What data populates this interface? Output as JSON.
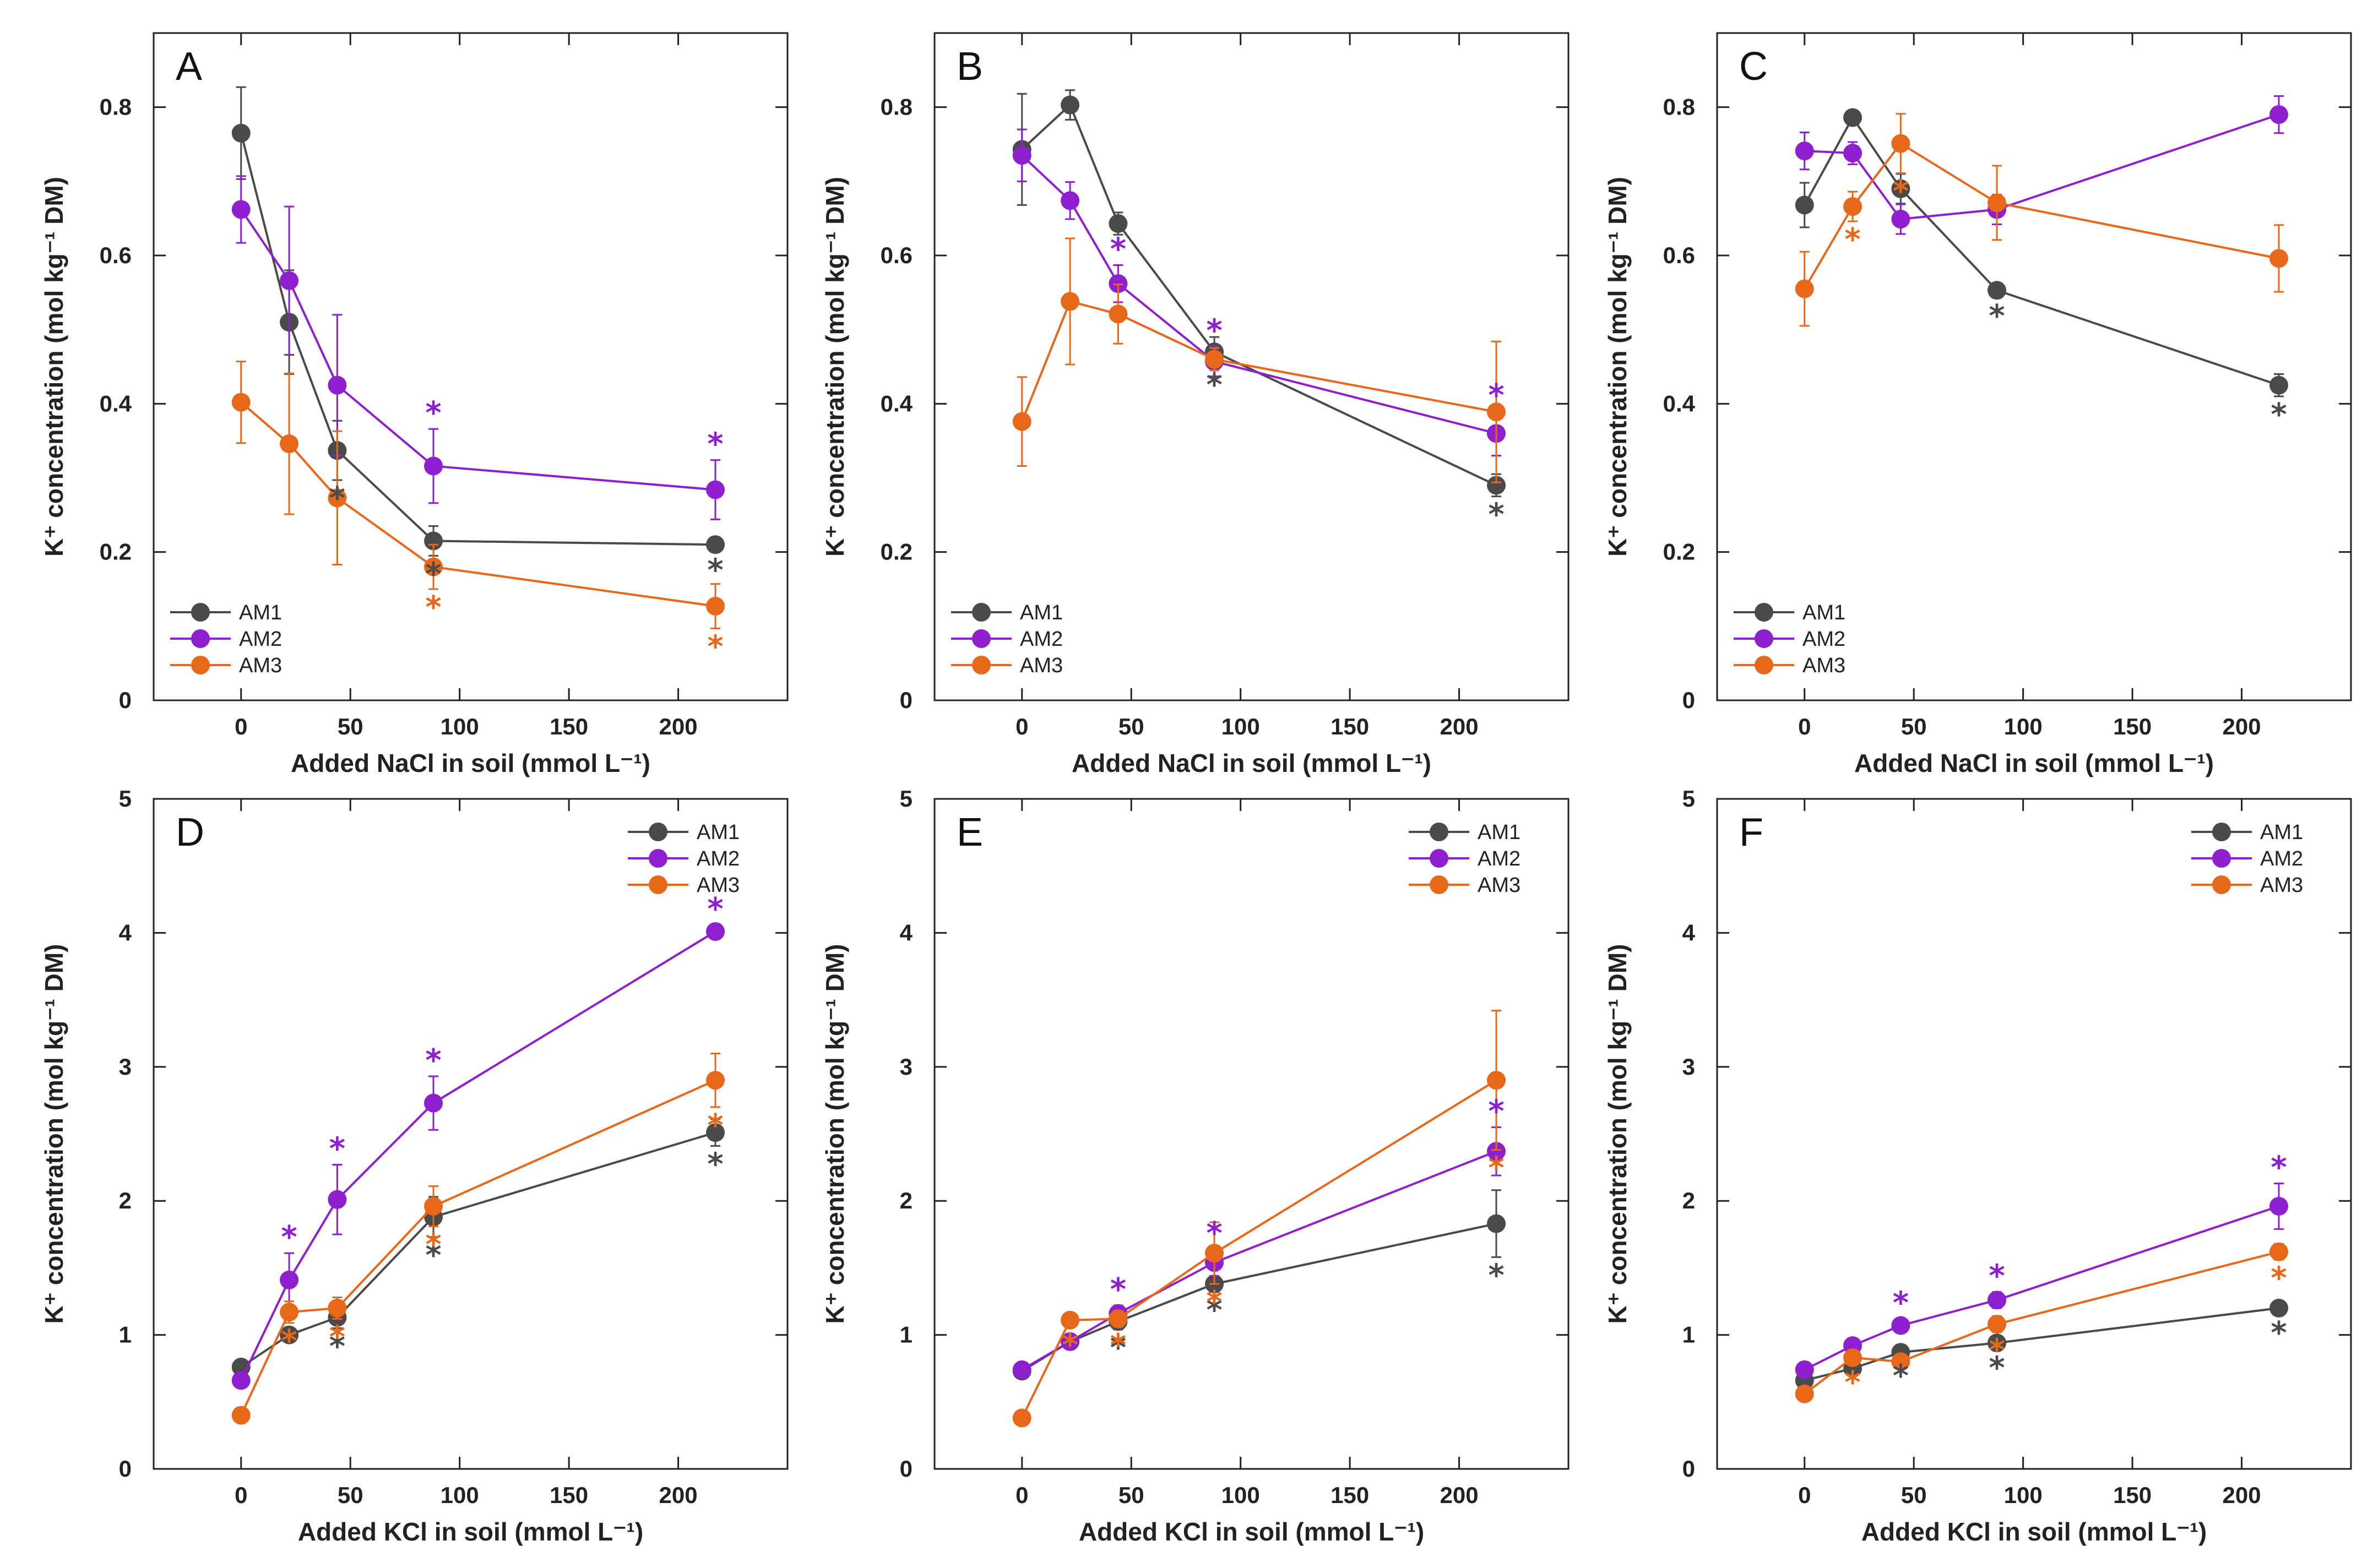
{
  "series_colors": {
    "AM1": "#4a4a4a",
    "AM2": "#8e1fcf",
    "AM3": "#e8681a"
  },
  "chart_data": [
    {
      "id": "A",
      "type": "line",
      "panel_label": "A",
      "xlabel": "Added NaCl in soil (mmol L⁻¹)",
      "ylabel": "K⁺ concentration (mol kg⁻¹ DM)",
      "xlim": [
        -40,
        250
      ],
      "ylim": [
        0,
        0.9
      ],
      "xticks": [
        0,
        50,
        100,
        150,
        200
      ],
      "xtick_labels": [
        "0",
        "50",
        "100",
        "150",
        "200"
      ],
      "yticks": [
        0,
        0.2,
        0.4,
        0.6,
        0.8
      ],
      "ytick_labels": [
        "0",
        "0.2",
        "0.4",
        "0.6",
        "0.8"
      ],
      "legend": {
        "position": "bottom-left",
        "entries": [
          "AM1",
          "AM2",
          "AM3"
        ]
      },
      "x": [
        0,
        22,
        44,
        88,
        217
      ],
      "series": [
        {
          "name": "AM1",
          "values": [
            0.765,
            0.51,
            0.337,
            0.215,
            0.21
          ],
          "errors": [
            0.062,
            0.07,
            0.04,
            0.02,
            0.01
          ],
          "sig": [
            false,
            false,
            true,
            true,
            true
          ]
        },
        {
          "name": "AM2",
          "values": [
            0.662,
            0.566,
            0.425,
            0.316,
            0.284
          ],
          "errors": [
            0.045,
            0.1,
            0.095,
            0.05,
            0.04
          ],
          "sig": [
            false,
            false,
            false,
            true,
            true
          ]
        },
        {
          "name": "AM3",
          "values": [
            0.402,
            0.346,
            0.273,
            0.18,
            0.127
          ],
          "errors": [
            0.055,
            0.095,
            0.09,
            0.03,
            0.03
          ],
          "sig": [
            false,
            false,
            false,
            true,
            true
          ]
        }
      ]
    },
    {
      "id": "B",
      "type": "line",
      "panel_label": "B",
      "xlabel": "Added NaCl in soil (mmol L⁻¹)",
      "ylabel": "K⁺ concentration (mol kg⁻¹ DM)",
      "xlim": [
        -40,
        250
      ],
      "ylim": [
        0,
        0.9
      ],
      "xticks": [
        0,
        50,
        100,
        150,
        200
      ],
      "xtick_labels": [
        "0",
        "50",
        "100",
        "150",
        "200"
      ],
      "yticks": [
        0,
        0.2,
        0.4,
        0.6,
        0.8
      ],
      "ytick_labels": [
        "0",
        "0.2",
        "0.4",
        "0.6",
        "0.8"
      ],
      "legend": {
        "position": "bottom-left",
        "entries": [
          "AM1",
          "AM2",
          "AM3"
        ]
      },
      "x": [
        0,
        22,
        44,
        88,
        217
      ],
      "series": [
        {
          "name": "AM1",
          "values": [
            0.743,
            0.803,
            0.643,
            0.47,
            0.29
          ],
          "errors": [
            0.075,
            0.02,
            0.015,
            0.02,
            0.015
          ],
          "sig": [
            false,
            false,
            false,
            true,
            true
          ]
        },
        {
          "name": "AM2",
          "values": [
            0.735,
            0.674,
            0.562,
            0.457,
            0.36
          ],
          "errors": [
            0.035,
            0.025,
            0.025,
            0.02,
            0.03
          ],
          "sig": [
            false,
            false,
            true,
            true,
            true
          ]
        },
        {
          "name": "AM3",
          "values": [
            0.376,
            0.538,
            0.521,
            0.46,
            0.389
          ],
          "errors": [
            0.06,
            0.085,
            0.04,
            0.015,
            0.095
          ],
          "sig": [
            false,
            false,
            false,
            false,
            false
          ]
        }
      ]
    },
    {
      "id": "C",
      "type": "line",
      "panel_label": "C",
      "xlabel": "Added NaCl in soil (mmol L⁻¹)",
      "ylabel": "K⁺ concentration (mol kg⁻¹ DM)",
      "xlim": [
        -40,
        250
      ],
      "ylim": [
        0,
        0.9
      ],
      "xticks": [
        0,
        50,
        100,
        150,
        200
      ],
      "xtick_labels": [
        "0",
        "50",
        "100",
        "150",
        "200"
      ],
      "yticks": [
        0,
        0.2,
        0.4,
        0.6,
        0.8
      ],
      "ytick_labels": [
        "0",
        "0.2",
        "0.4",
        "0.6",
        "0.8"
      ],
      "legend": {
        "position": "bottom-left",
        "entries": [
          "AM1",
          "AM2",
          "AM3"
        ]
      },
      "x": [
        0,
        22,
        44,
        88,
        217
      ],
      "series": [
        {
          "name": "AM1",
          "values": [
            0.668,
            0.786,
            0.69,
            0.553,
            0.425
          ],
          "errors": [
            0.03,
            0.01,
            0.02,
            0.01,
            0.015
          ],
          "sig": [
            false,
            false,
            false,
            true,
            true
          ]
        },
        {
          "name": "AM2",
          "values": [
            0.741,
            0.738,
            0.649,
            0.662,
            0.79
          ],
          "errors": [
            0.025,
            0.015,
            0.02,
            0.02,
            0.025
          ],
          "sig": [
            false,
            false,
            false,
            false,
            false
          ]
        },
        {
          "name": "AM3",
          "values": [
            0.555,
            0.666,
            0.751,
            0.671,
            0.596
          ],
          "errors": [
            0.05,
            0.02,
            0.04,
            0.05,
            0.045
          ],
          "sig": [
            false,
            true,
            true,
            false,
            false
          ]
        }
      ]
    },
    {
      "id": "D",
      "type": "line",
      "panel_label": "D",
      "xlabel": "Added KCl in soil (mmol L⁻¹)",
      "ylabel": "K⁺ concentration (mol kg⁻¹ DM)",
      "xlim": [
        -40,
        250
      ],
      "ylim": [
        0,
        5
      ],
      "xticks": [
        0,
        50,
        100,
        150,
        200
      ],
      "xtick_labels": [
        "0",
        "50",
        "100",
        "150",
        "200"
      ],
      "yticks": [
        0,
        1,
        2,
        3,
        4,
        5
      ],
      "ytick_labels": [
        "0",
        "1",
        "2",
        "3",
        "4",
        "5"
      ],
      "legend": {
        "position": "top-right",
        "entries": [
          "AM1",
          "AM2",
          "AM3"
        ]
      },
      "x": [
        0,
        22,
        44,
        88,
        217
      ],
      "series": [
        {
          "name": "AM1",
          "values": [
            0.76,
            1.0,
            1.13,
            1.88,
            2.51
          ],
          "errors": [
            0.05,
            0.05,
            0.08,
            0.15,
            0.1
          ],
          "sig": [
            false,
            false,
            true,
            true,
            true
          ]
        },
        {
          "name": "AM2",
          "values": [
            0.66,
            1.41,
            2.01,
            2.73,
            4.01
          ],
          "errors": [
            0.05,
            0.2,
            0.26,
            0.2,
            0.05
          ],
          "sig": [
            false,
            true,
            true,
            true,
            true
          ]
        },
        {
          "name": "AM3",
          "values": [
            0.4,
            1.17,
            1.2,
            1.96,
            2.9
          ],
          "errors": [
            0.03,
            0.08,
            0.08,
            0.15,
            0.2
          ],
          "sig": [
            false,
            true,
            true,
            true,
            true
          ]
        }
      ]
    },
    {
      "id": "E",
      "type": "line",
      "panel_label": "E",
      "xlabel": "Added KCl in soil (mmol L⁻¹)",
      "ylabel": "K⁺ concentration (mol kg⁻¹ DM)",
      "xlim": [
        -40,
        250
      ],
      "ylim": [
        0,
        5
      ],
      "xticks": [
        0,
        50,
        100,
        150,
        200
      ],
      "xtick_labels": [
        "0",
        "50",
        "100",
        "150",
        "200"
      ],
      "yticks": [
        0,
        1,
        2,
        3,
        4,
        5
      ],
      "ytick_labels": [
        "0",
        "1",
        "2",
        "3",
        "4",
        "5"
      ],
      "legend": {
        "position": "top-right",
        "entries": [
          "AM1",
          "AM2",
          "AM3"
        ]
      },
      "x": [
        0,
        22,
        44,
        88,
        217
      ],
      "series": [
        {
          "name": "AM1",
          "values": [
            0.73,
            0.95,
            1.1,
            1.38,
            1.83
          ],
          "errors": [
            0.04,
            0.05,
            0.06,
            0.06,
            0.25
          ],
          "sig": [
            false,
            false,
            true,
            true,
            true
          ]
        },
        {
          "name": "AM2",
          "values": [
            0.74,
            0.95,
            1.16,
            1.54,
            2.37
          ],
          "errors": [
            0.04,
            0.05,
            0.06,
            0.1,
            0.18
          ],
          "sig": [
            false,
            false,
            true,
            true,
            true
          ]
        },
        {
          "name": "AM3",
          "values": [
            0.38,
            1.11,
            1.12,
            1.61,
            2.9
          ],
          "errors": [
            0.03,
            0.05,
            0.06,
            0.23,
            0.52
          ],
          "sig": [
            false,
            true,
            true,
            true,
            true
          ]
        }
      ]
    },
    {
      "id": "F",
      "type": "line",
      "panel_label": "F",
      "xlabel": "Added KCl in soil (mmol L⁻¹)",
      "ylabel": "K⁺ concentration (mol kg⁻¹ DM)",
      "xlim": [
        -40,
        250
      ],
      "ylim": [
        0,
        5
      ],
      "xticks": [
        0,
        50,
        100,
        150,
        200
      ],
      "xtick_labels": [
        "0",
        "50",
        "100",
        "150",
        "200"
      ],
      "yticks": [
        0,
        1,
        2,
        3,
        4,
        5
      ],
      "ytick_labels": [
        "0",
        "1",
        "2",
        "3",
        "4",
        "5"
      ],
      "legend": {
        "position": "top-right",
        "entries": [
          "AM1",
          "AM2",
          "AM3"
        ]
      },
      "x": [
        0,
        22,
        44,
        88,
        217
      ],
      "series": [
        {
          "name": "AM1",
          "values": [
            0.66,
            0.75,
            0.87,
            0.94,
            1.2
          ],
          "errors": [
            0.03,
            0.04,
            0.04,
            0.05,
            0.05
          ],
          "sig": [
            false,
            false,
            true,
            true,
            true
          ]
        },
        {
          "name": "AM2",
          "values": [
            0.74,
            0.92,
            1.07,
            1.26,
            1.96
          ],
          "errors": [
            0.03,
            0.05,
            0.05,
            0.06,
            0.17
          ],
          "sig": [
            false,
            false,
            true,
            true,
            true
          ]
        },
        {
          "name": "AM3",
          "values": [
            0.56,
            0.83,
            0.8,
            1.08,
            1.62
          ],
          "errors": [
            0.03,
            0.05,
            0.05,
            0.06,
            0.06
          ],
          "sig": [
            false,
            true,
            false,
            true,
            true
          ]
        }
      ]
    }
  ]
}
